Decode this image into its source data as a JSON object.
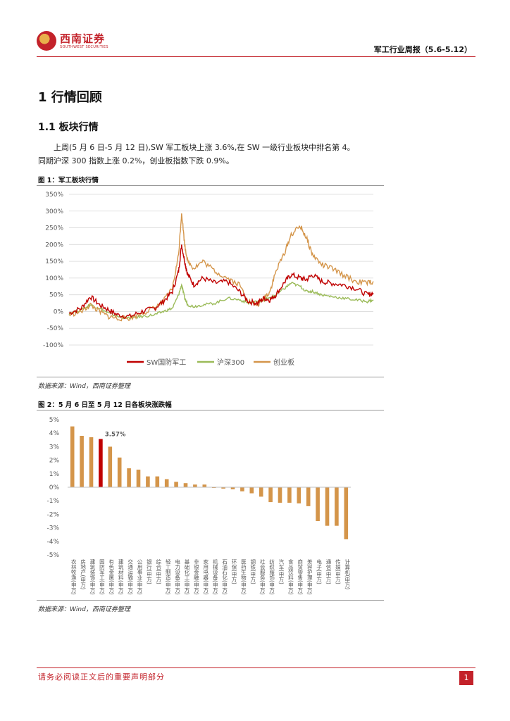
{
  "header": {
    "brand_cn": "西南证券",
    "brand_en": "SOUTHWEST SECURITIES",
    "report_title": "军工行业周报（5.6-5.12）"
  },
  "section": {
    "h1": "1 行情回顾",
    "h2": "1.1 板块行情",
    "para_line1": "上周(5 月 6 日-5 月 12 日),SW 军工板块上涨 3.6%,在 SW 一级行业板块中排名第 4。",
    "para_line2": "同期沪深 300 指数上涨 0.2%，创业板指数下跌 0.9%。"
  },
  "figure1": {
    "title": "图 1：军工板块行情",
    "source": "数据来源：Wind，西南证券整理"
  },
  "figure2": {
    "title": "图 2：5 月 6 日至 5 月 12 日各板块涨跌幅",
    "source": "数据来源：Wind，西南证券整理",
    "highlight_label": "3.57%"
  },
  "footer": {
    "disclaimer": "请务必阅读正文后的重要声明部分",
    "page": "1"
  },
  "colors": {
    "brand_red": "#c3222a",
    "sw_defense": "#c00000",
    "hs300": "#9bbb59",
    "chinext": "#d4954a",
    "bar": "#d4954a",
    "bar_highlight": "#c00000"
  },
  "chart_data": [
    {
      "type": "line",
      "title": "军工板块行情",
      "ylim": [
        -100,
        350
      ],
      "yticks": [
        "350%",
        "300%",
        "250%",
        "200%",
        "150%",
        "100%",
        "50%",
        "0%",
        "-50%",
        "-100%"
      ],
      "ytick_values": [
        350,
        300,
        250,
        200,
        150,
        100,
        50,
        0,
        -50,
        -100
      ],
      "x": [
        0,
        0.04,
        0.07,
        0.1,
        0.13,
        0.16,
        0.2,
        0.24,
        0.28,
        0.31,
        0.34,
        0.36,
        0.37,
        0.38,
        0.39,
        0.41,
        0.44,
        0.48,
        0.52,
        0.56,
        0.59,
        0.62,
        0.64,
        0.66,
        0.68,
        0.71,
        0.73,
        0.76,
        0.78,
        0.8,
        0.83,
        0.86,
        0.9,
        0.94,
        0.98,
        1.0
      ],
      "legend": [
        "SW国防军工",
        "沪深300",
        "创业板"
      ],
      "series": [
        {
          "name": "SW国防军工",
          "values": [
            -5,
            10,
            45,
            20,
            5,
            -10,
            -15,
            0,
            10,
            30,
            60,
            120,
            200,
            150,
            110,
            80,
            100,
            85,
            90,
            60,
            30,
            25,
            40,
            35,
            50,
            90,
            110,
            100,
            95,
            110,
            90,
            85,
            80,
            70,
            50,
            55
          ]
        },
        {
          "name": "沪深300",
          "values": [
            -5,
            5,
            20,
            10,
            -5,
            -15,
            -20,
            -15,
            -10,
            0,
            10,
            50,
            80,
            40,
            20,
            15,
            20,
            25,
            40,
            35,
            25,
            30,
            35,
            40,
            50,
            70,
            85,
            75,
            60,
            60,
            50,
            45,
            40,
            35,
            30,
            35
          ]
        },
        {
          "name": "创业板",
          "values": [
            -10,
            0,
            20,
            0,
            -15,
            -20,
            -20,
            -5,
            10,
            30,
            70,
            170,
            295,
            200,
            150,
            130,
            150,
            120,
            100,
            80,
            30,
            20,
            40,
            60,
            120,
            180,
            230,
            255,
            220,
            170,
            140,
            130,
            110,
            90,
            85,
            90
          ]
        }
      ]
    },
    {
      "type": "bar",
      "title": "5 月 6 日至 5 月 12 日各板块涨跌幅",
      "ylim": [
        -5,
        5
      ],
      "yticks": [
        "5%",
        "4%",
        "3%",
        "2%",
        "1%",
        "0%",
        "-1%",
        "-2%",
        "-3%",
        "-4%",
        "-5%"
      ],
      "ytick_values": [
        5,
        4,
        3,
        2,
        1,
        0,
        -1,
        -2,
        -3,
        -4,
        -5
      ],
      "categories": [
        "农林牧渔(申万)",
        "房地产(申万)",
        "建筑装饰(申万)",
        "国防军工(申万)",
        "有色金属(申万)",
        "建筑材料(申万)",
        "交通运输(申万)",
        "公用事业(申万)",
        "银行(申万)",
        "综合(申万)",
        "轻工制造(申万)",
        "电力设备(申万)",
        "基础化工(申万)",
        "非银金融(申万)",
        "家用电器(申万)",
        "机械设备(申万)",
        "石油石化(申万)",
        "环保(申万)",
        "医药生物(申万)",
        "钢铁(申万)",
        "社会服务(申万)",
        "纺织服饰(申万)",
        "汽车(申万)",
        "食品饮料(申万)",
        "商贸零售(申万)",
        "美容护理(申万)",
        "电子(申万)",
        "通信(申万)",
        "传媒(申万)",
        "计算机(申万)"
      ],
      "values": [
        4.5,
        3.8,
        3.7,
        3.57,
        3.0,
        2.2,
        1.4,
        1.3,
        0.8,
        0.8,
        0.6,
        0.4,
        0.3,
        0.2,
        0.2,
        -0.05,
        -0.1,
        -0.15,
        -0.3,
        -0.45,
        -0.7,
        -1.1,
        -1.15,
        -1.15,
        -1.2,
        -1.4,
        -2.5,
        -2.85,
        -2.85,
        -3.85
      ],
      "highlight_index": 3
    }
  ]
}
